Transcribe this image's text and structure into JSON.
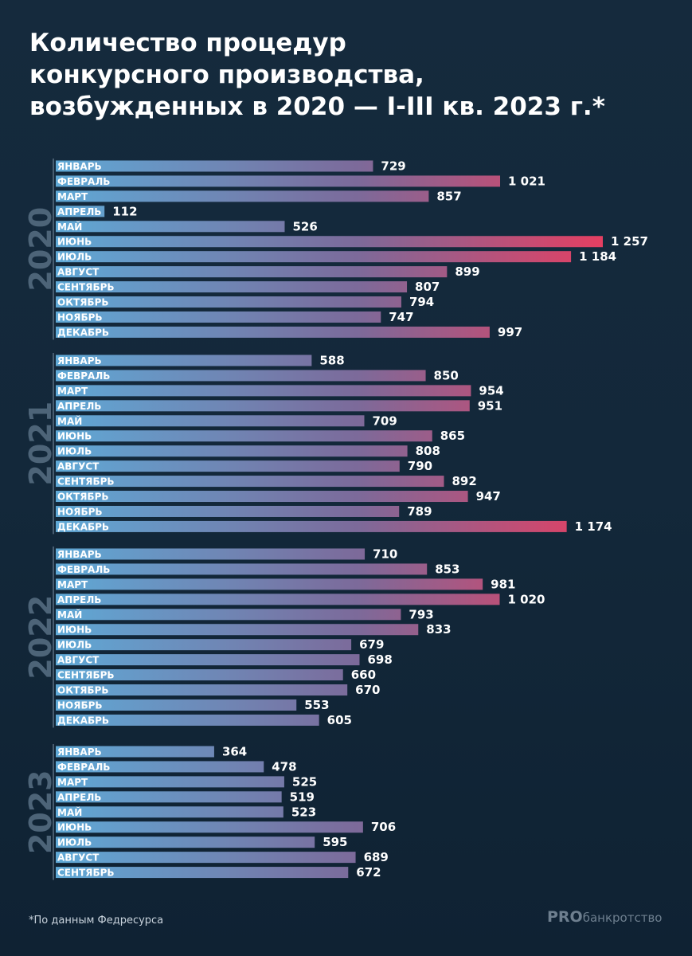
{
  "title_lines": [
    "Количество процедур",
    "конкурсного производства,",
    "возбужденных в 2020 — I-III кв. 2023 г.*"
  ],
  "footnote": "*По данным Федресурса",
  "logo": {
    "pro": "PRO",
    "rest": "банкротство"
  },
  "colors": {
    "bar_start": "#5fa9d6",
    "bar_mid": "#7c6a9a",
    "bar_end": "#e53f62",
    "year_label": "#4d6478",
    "axis_line": "#5a6f82",
    "text": "#ffffff"
  },
  "chart_data": {
    "type": "bar",
    "orientation": "horizontal",
    "xlim": [
      0,
      1257
    ],
    "grid": false,
    "groups": [
      {
        "year": "2020",
        "categories": [
          "ЯНВАРЬ",
          "ФЕВРАЛЬ",
          "МАРТ",
          "АПРЕЛЬ",
          "МАЙ",
          "ИЮНЬ",
          "ИЮЛЬ",
          "АВГУСТ",
          "СЕНТЯБРЬ",
          "ОКТЯБРЬ",
          "НОЯБРЬ",
          "ДЕКАБРЬ"
        ],
        "values": [
          729,
          1021,
          857,
          112,
          526,
          1257,
          1184,
          899,
          807,
          794,
          747,
          997
        ],
        "value_labels": [
          "729",
          "1 021",
          "857",
          "112",
          "526",
          "1 257",
          "1 184",
          "899",
          "807",
          "794",
          "747",
          "997"
        ]
      },
      {
        "year": "2021",
        "categories": [
          "ЯНВАРЬ",
          "ФЕВРАЛЬ",
          "МАРТ",
          "АПРЕЛЬ",
          "МАЙ",
          "ИЮНЬ",
          "ИЮЛЬ",
          "АВГУСТ",
          "СЕНТЯБРЬ",
          "ОКТЯБРЬ",
          "НОЯБРЬ",
          "ДЕКАБРЬ"
        ],
        "values": [
          588,
          850,
          954,
          951,
          709,
          865,
          808,
          790,
          892,
          947,
          789,
          1174
        ],
        "value_labels": [
          "588",
          "850",
          "954",
          "951",
          "709",
          "865",
          "808",
          "790",
          "892",
          "947",
          "789",
          "1 174"
        ]
      },
      {
        "year": "2022",
        "categories": [
          "ЯНВАРЬ",
          "ФЕВРАЛЬ",
          "МАРТ",
          "АПРЕЛЬ",
          "МАЙ",
          "ИЮНЬ",
          "ИЮЛЬ",
          "АВГУСТ",
          "СЕНТЯБРЬ",
          "ОКТЯБРЬ",
          "НОЯБРЬ",
          "ДЕКАБРЬ"
        ],
        "values": [
          710,
          853,
          981,
          1020,
          793,
          833,
          679,
          698,
          660,
          670,
          553,
          605
        ],
        "value_labels": [
          "710",
          "853",
          "981",
          "1 020",
          "793",
          "833",
          "679",
          "698",
          "660",
          "670",
          "553",
          "605"
        ]
      },
      {
        "year": "2023",
        "categories": [
          "ЯНВАРЬ",
          "ФЕВРАЛЬ",
          "МАРТ",
          "АПРЕЛЬ",
          "МАЙ",
          "ИЮНЬ",
          "ИЮЛЬ",
          "АВГУСТ",
          "СЕНТЯБРЬ"
        ],
        "values": [
          364,
          478,
          525,
          519,
          523,
          706,
          595,
          689,
          672
        ],
        "value_labels": [
          "364",
          "478",
          "525",
          "519",
          "523",
          "706",
          "595",
          "689",
          "672"
        ]
      }
    ]
  }
}
